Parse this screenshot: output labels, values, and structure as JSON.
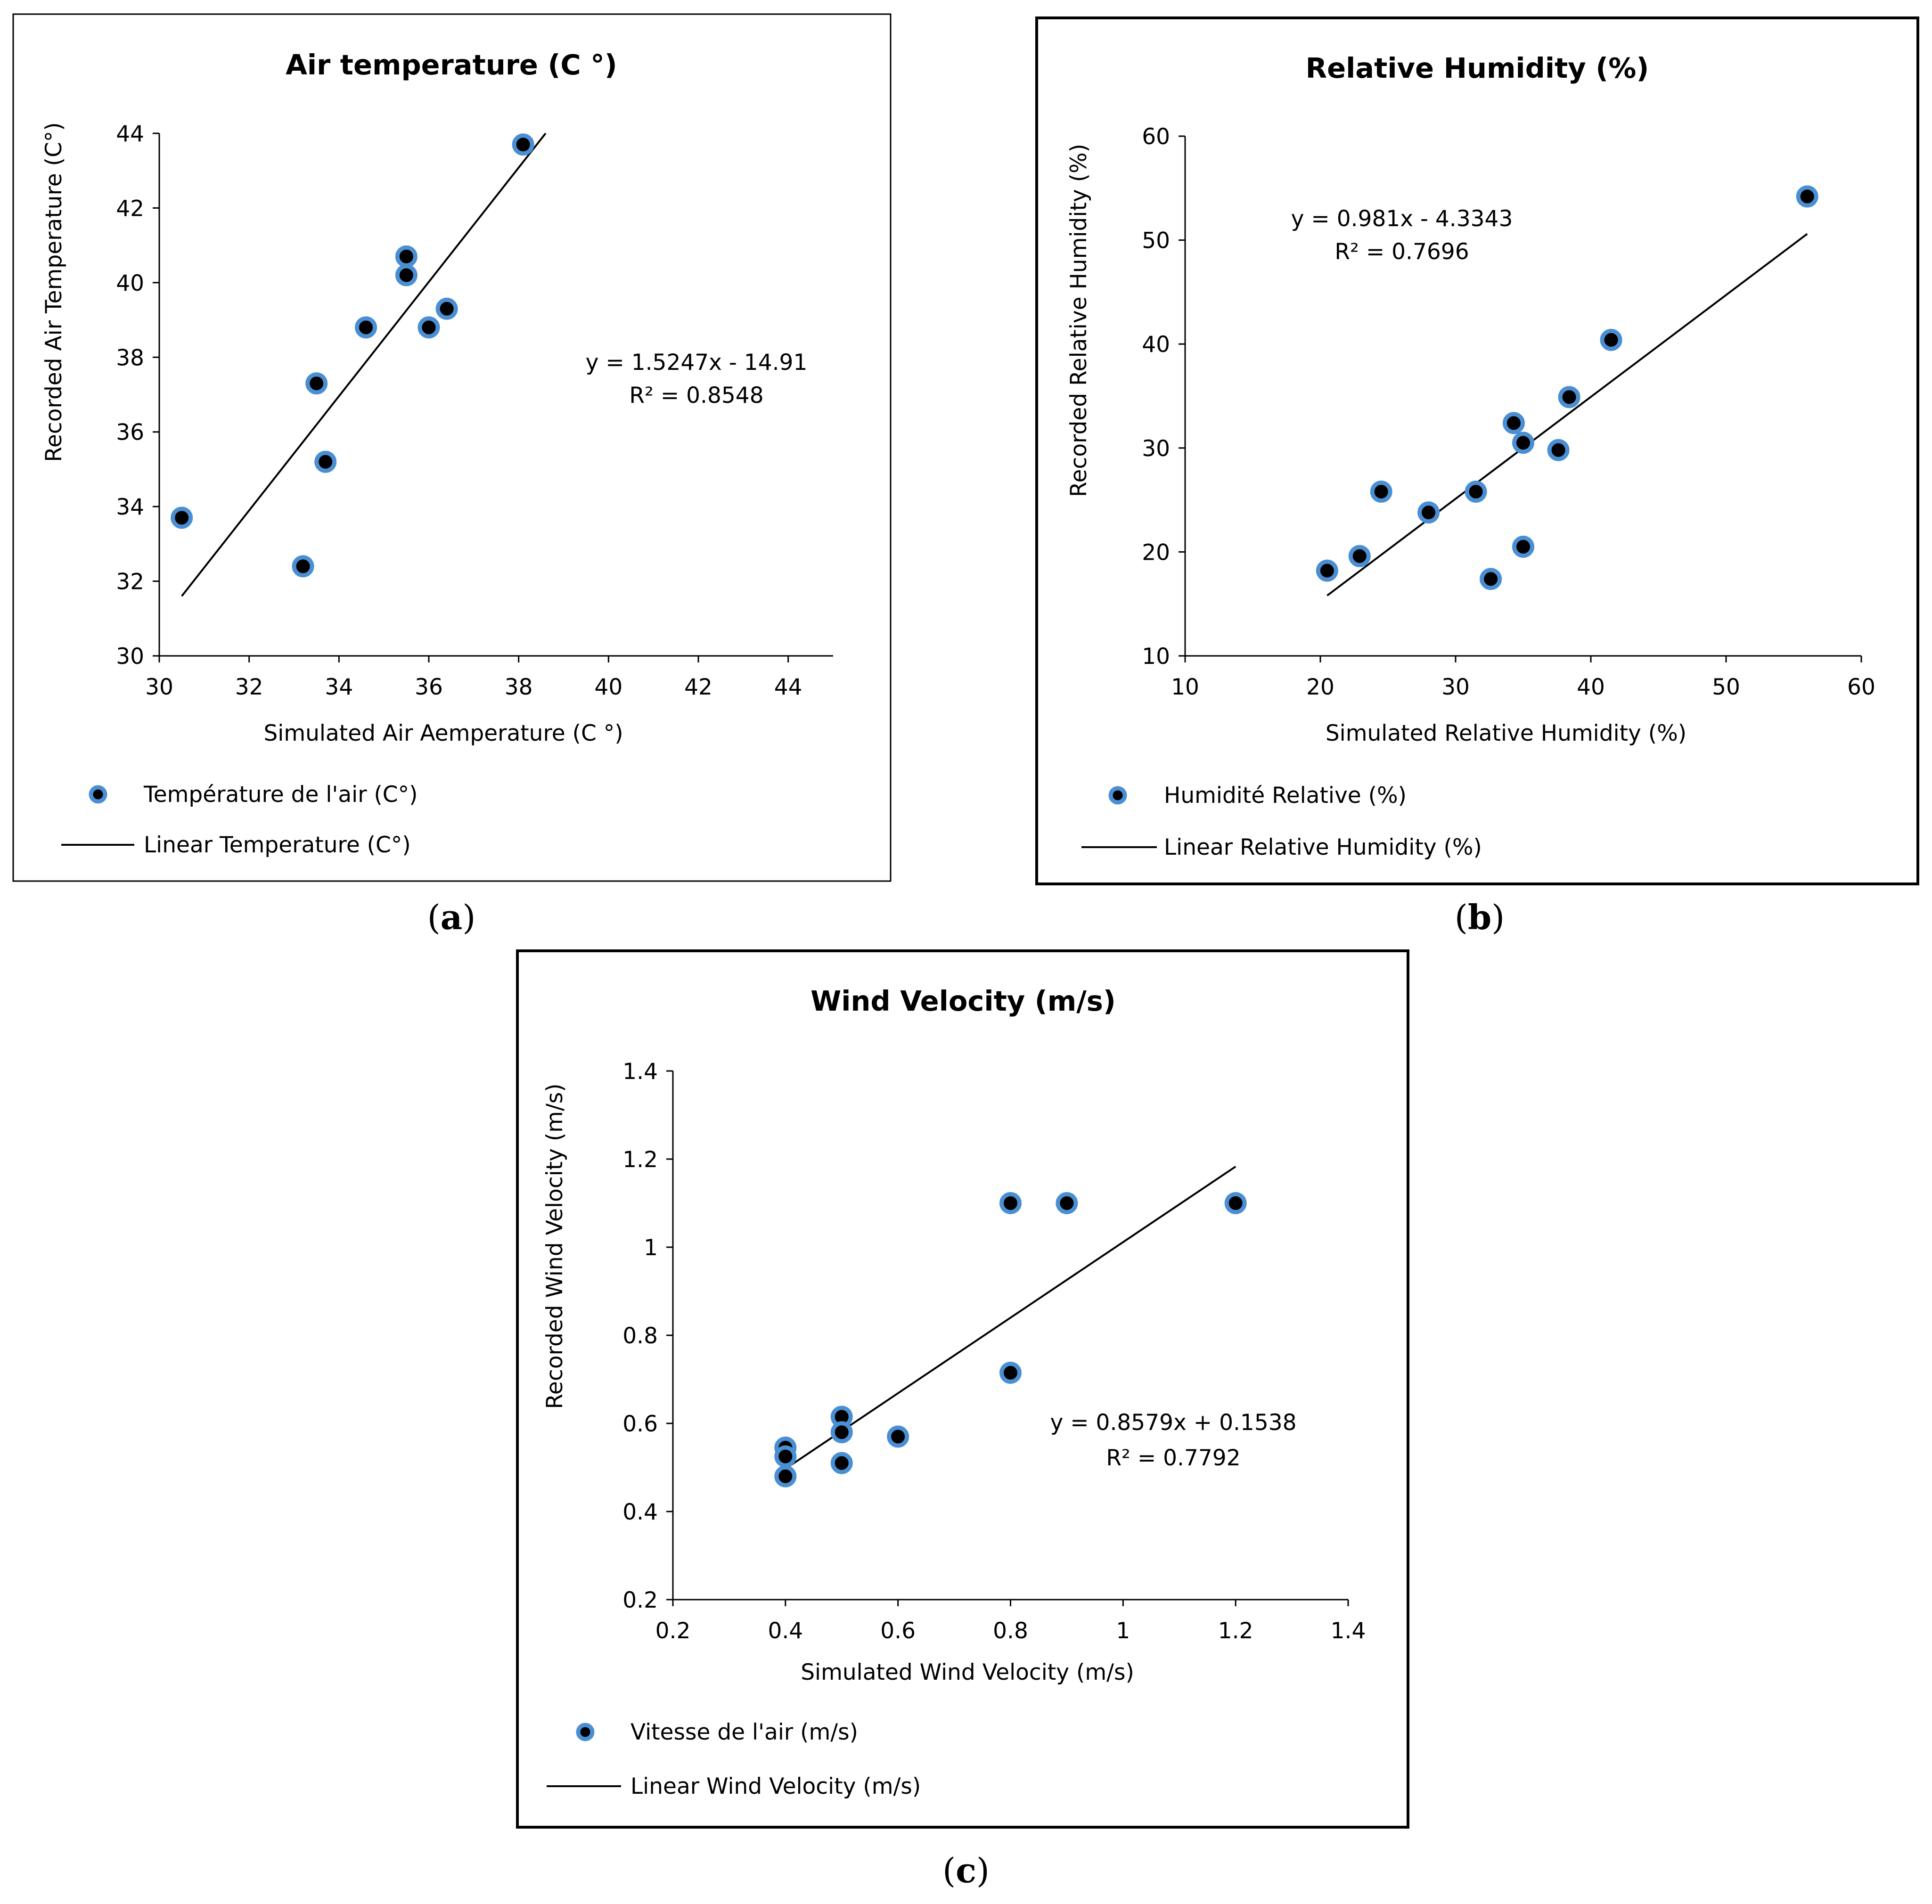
{
  "chart_data": [
    {
      "type": "scatter",
      "panel": "a",
      "caption": "(a)",
      "caption_letter": "a",
      "title": "Air temperature (C °)",
      "xlabel": "Simulated Air Aemperature (C °)",
      "ylabel": "Recorded Air Temperature (C°)",
      "xlim": [
        30,
        45
      ],
      "ylim": [
        30,
        44
      ],
      "xticks": [
        30,
        32,
        34,
        36,
        38,
        40,
        42,
        44
      ],
      "yticks": [
        30,
        32,
        34,
        36,
        38,
        40,
        42,
        44
      ],
      "points": [
        {
          "x": 30.5,
          "y": 33.7
        },
        {
          "x": 33.2,
          "y": 32.4
        },
        {
          "x": 33.5,
          "y": 37.3
        },
        {
          "x": 33.7,
          "y": 35.2
        },
        {
          "x": 34.6,
          "y": 38.8
        },
        {
          "x": 35.5,
          "y": 40.7
        },
        {
          "x": 35.5,
          "y": 40.2
        },
        {
          "x": 36.0,
          "y": 38.8
        },
        {
          "x": 36.4,
          "y": 39.3
        },
        {
          "x": 38.1,
          "y": 43.7
        }
      ],
      "fit": {
        "x1": 30.5,
        "y1": 31.6,
        "x2": 38.6,
        "y2": 44.0
      },
      "equation": "y = 1.5247x - 14.91",
      "r2": "R² = 0.8548",
      "legend": {
        "points": "Température de l'air (C°)",
        "line": "Linear Temperature (C°)"
      }
    },
    {
      "type": "scatter",
      "panel": "b",
      "caption": "(b)",
      "caption_letter": "b",
      "title": "Relative Humidity (%)",
      "xlabel": "Simulated Relative Humidity (%)",
      "ylabel": "Recorded Relative Humidity (%)",
      "xlim": [
        10,
        60
      ],
      "ylim": [
        10,
        60
      ],
      "xticks": [
        10,
        20,
        30,
        40,
        50,
        60
      ],
      "yticks": [
        10,
        20,
        30,
        40,
        50,
        60
      ],
      "points": [
        {
          "x": 20.5,
          "y": 18.2
        },
        {
          "x": 22.9,
          "y": 19.6
        },
        {
          "x": 24.5,
          "y": 25.8
        },
        {
          "x": 28.0,
          "y": 23.8
        },
        {
          "x": 31.5,
          "y": 25.8
        },
        {
          "x": 32.6,
          "y": 17.4
        },
        {
          "x": 34.3,
          "y": 32.4
        },
        {
          "x": 35.0,
          "y": 30.5
        },
        {
          "x": 35.0,
          "y": 20.5
        },
        {
          "x": 37.6,
          "y": 29.8
        },
        {
          "x": 38.4,
          "y": 34.9
        },
        {
          "x": 41.5,
          "y": 40.4
        },
        {
          "x": 56.0,
          "y": 54.2
        }
      ],
      "fit": {
        "x1": 20.5,
        "y1": 15.8,
        "x2": 56.0,
        "y2": 50.6
      },
      "equation": "y = 0.981x - 4.3343",
      "r2": "R² = 0.7696",
      "legend": {
        "points": "Humidité Relative (%)",
        "line": "Linear Relative Humidity (%)"
      }
    },
    {
      "type": "scatter",
      "panel": "c",
      "caption": "(c)",
      "caption_letter": "c",
      "title": "Wind Velocity (m/s)",
      "xlabel": "Simulated Wind Velocity (m/s)",
      "ylabel": "Recorded Wind Velocity (m/s)",
      "xlim": [
        0.2,
        1.4
      ],
      "ylim": [
        0.2,
        1.4
      ],
      "xticks": [
        "0.2",
        "0.4",
        "0.6",
        "0.8",
        "1",
        "1.2",
        "1.4"
      ],
      "yticks": [
        "0.2",
        "0.4",
        "0.6",
        "0.8",
        "1",
        "1.2",
        "1.4"
      ],
      "points": [
        {
          "x": 0.4,
          "y": 0.545
        },
        {
          "x": 0.4,
          "y": 0.525
        },
        {
          "x": 0.4,
          "y": 0.48
        },
        {
          "x": 0.5,
          "y": 0.615
        },
        {
          "x": 0.5,
          "y": 0.58
        },
        {
          "x": 0.5,
          "y": 0.51
        },
        {
          "x": 0.6,
          "y": 0.57
        },
        {
          "x": 0.8,
          "y": 1.1
        },
        {
          "x": 0.8,
          "y": 0.715
        },
        {
          "x": 0.9,
          "y": 1.1
        },
        {
          "x": 1.2,
          "y": 1.1
        }
      ],
      "fit": {
        "x1": 0.4,
        "y1": 0.497,
        "x2": 1.2,
        "y2": 1.183
      },
      "equation": "y = 0.8579x + 0.1538",
      "r2": "R² = 0.7792",
      "legend": {
        "points": "Vitesse de l'air (m/s)",
        "line": "Linear Wind Velocity (m/s)"
      }
    }
  ]
}
